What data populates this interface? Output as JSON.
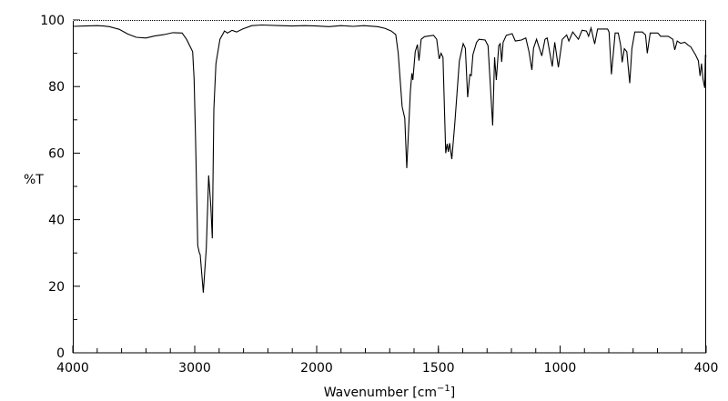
{
  "chart_data": {
    "type": "line",
    "title": "",
    "xlabel": "Wavenumber [cm⁻¹]",
    "xlabel_base": "Wavenumber [cm",
    "xlabel_sup": "−1",
    "xlabel_end": "]",
    "ylabel": "%T",
    "xlim": [
      4000,
      400
    ],
    "ylim": [
      0,
      100
    ],
    "x_scale_break": 2000,
    "x_ticks": [
      4000,
      3000,
      2000,
      1500,
      1000,
      400
    ],
    "y_ticks": [
      0,
      20,
      40,
      60,
      80,
      100
    ],
    "grid": false,
    "line_color": "#000000",
    "series": [
      {
        "name": "spectrum",
        "points": [
          [
            4000,
            98.1
          ],
          [
            3900,
            98.2
          ],
          [
            3800,
            98.3
          ],
          [
            3750,
            98.2
          ],
          [
            3700,
            98.0
          ],
          [
            3620,
            97.2
          ],
          [
            3550,
            95.8
          ],
          [
            3480,
            94.8
          ],
          [
            3400,
            94.6
          ],
          [
            3330,
            95.2
          ],
          [
            3254,
            95.6
          ],
          [
            3179,
            96.2
          ],
          [
            3104,
            96.1
          ],
          [
            3067,
            94.2
          ],
          [
            3017,
            90.5
          ],
          [
            3005,
            82.3
          ],
          [
            2993,
            64.2
          ],
          [
            2975,
            32.2
          ],
          [
            2962,
            30.0
          ],
          [
            2955,
            29.5
          ],
          [
            2930,
            18.1
          ],
          [
            2905,
            31.4
          ],
          [
            2886,
            53.3
          ],
          [
            2868,
            44.0
          ],
          [
            2856,
            34.4
          ],
          [
            2843,
            73.2
          ],
          [
            2826,
            86.9
          ],
          [
            2793,
            94.2
          ],
          [
            2756,
            96.7
          ],
          [
            2731,
            96.1
          ],
          [
            2694,
            96.9
          ],
          [
            2657,
            96.4
          ],
          [
            2607,
            97.3
          ],
          [
            2532,
            98.3
          ],
          [
            2450,
            98.5
          ],
          [
            2300,
            98.3
          ],
          [
            2200,
            98.2
          ],
          [
            2100,
            98.3
          ],
          [
            2000,
            98.2
          ],
          [
            1950,
            98.0
          ],
          [
            1900,
            98.3
          ],
          [
            1850,
            98.1
          ],
          [
            1806,
            98.3
          ],
          [
            1750,
            98.0
          ],
          [
            1720,
            97.5
          ],
          [
            1694,
            96.7
          ],
          [
            1675,
            95.6
          ],
          [
            1665,
            90
          ],
          [
            1649,
            74.0
          ],
          [
            1638,
            70.5
          ],
          [
            1630,
            55.5
          ],
          [
            1615,
            78.7
          ],
          [
            1609,
            84.0
          ],
          [
            1605,
            82.0
          ],
          [
            1595,
            90.5
          ],
          [
            1586,
            92.6
          ],
          [
            1580,
            87.8
          ],
          [
            1571,
            94.2
          ],
          [
            1557,
            95.0
          ],
          [
            1520,
            95.4
          ],
          [
            1507,
            94.2
          ],
          [
            1497,
            88.3
          ],
          [
            1489,
            90.0
          ],
          [
            1481,
            88.8
          ],
          [
            1470,
            60.0
          ],
          [
            1464,
            62.8
          ],
          [
            1459,
            60.4
          ],
          [
            1454,
            63.0
          ],
          [
            1445,
            58.2
          ],
          [
            1433,
            68.6
          ],
          [
            1414,
            87.7
          ],
          [
            1398,
            92.9
          ],
          [
            1389,
            91.5
          ],
          [
            1380,
            76.8
          ],
          [
            1371,
            83.6
          ],
          [
            1365,
            83.3
          ],
          [
            1358,
            89.6
          ],
          [
            1343,
            93.3
          ],
          [
            1333,
            94.2
          ],
          [
            1308,
            94.0
          ],
          [
            1296,
            92.3
          ],
          [
            1277,
            68.3
          ],
          [
            1269,
            88.8
          ],
          [
            1262,
            82.0
          ],
          [
            1252,
            92.3
          ],
          [
            1246,
            92.9
          ],
          [
            1240,
            87.4
          ],
          [
            1234,
            93.3
          ],
          [
            1221,
            95.4
          ],
          [
            1197,
            95.9
          ],
          [
            1184,
            93.7
          ],
          [
            1159,
            94.0
          ],
          [
            1141,
            94.6
          ],
          [
            1128,
            90.5
          ],
          [
            1116,
            85.0
          ],
          [
            1109,
            91.5
          ],
          [
            1097,
            94.2
          ],
          [
            1075,
            89.2
          ],
          [
            1062,
            94.2
          ],
          [
            1053,
            94.6
          ],
          [
            1032,
            86.0
          ],
          [
            1022,
            93.3
          ],
          [
            1007,
            85.8
          ],
          [
            991,
            94.2
          ],
          [
            973,
            95.5
          ],
          [
            964,
            93.7
          ],
          [
            948,
            96.4
          ],
          [
            925,
            94.2
          ],
          [
            910,
            96.9
          ],
          [
            892,
            96.7
          ],
          [
            883,
            95.1
          ],
          [
            873,
            97.6
          ],
          [
            858,
            92.8
          ],
          [
            846,
            97.3
          ],
          [
            805,
            97.3
          ],
          [
            799,
            96.4
          ],
          [
            789,
            83.7
          ],
          [
            774,
            96.1
          ],
          [
            761,
            96.1
          ],
          [
            751,
            92.3
          ],
          [
            745,
            87.3
          ],
          [
            736,
            91.4
          ],
          [
            726,
            90.5
          ],
          [
            714,
            81.0
          ],
          [
            705,
            91.4
          ],
          [
            693,
            96.4
          ],
          [
            662,
            96.4
          ],
          [
            649,
            95.5
          ],
          [
            642,
            90.0
          ],
          [
            630,
            96.1
          ],
          [
            599,
            96.1
          ],
          [
            587,
            95.1
          ],
          [
            556,
            95.1
          ],
          [
            537,
            94.2
          ],
          [
            529,
            91.0
          ],
          [
            519,
            93.7
          ],
          [
            505,
            93.0
          ],
          [
            488,
            93.3
          ],
          [
            475,
            92.5
          ],
          [
            463,
            91.9
          ],
          [
            444,
            89.6
          ],
          [
            432,
            87.8
          ],
          [
            425,
            83.2
          ],
          [
            419,
            86.9
          ],
          [
            413,
            82.3
          ],
          [
            406,
            79.6
          ],
          [
            403,
            89.6
          ],
          [
            400,
            89.0
          ]
        ]
      }
    ]
  }
}
